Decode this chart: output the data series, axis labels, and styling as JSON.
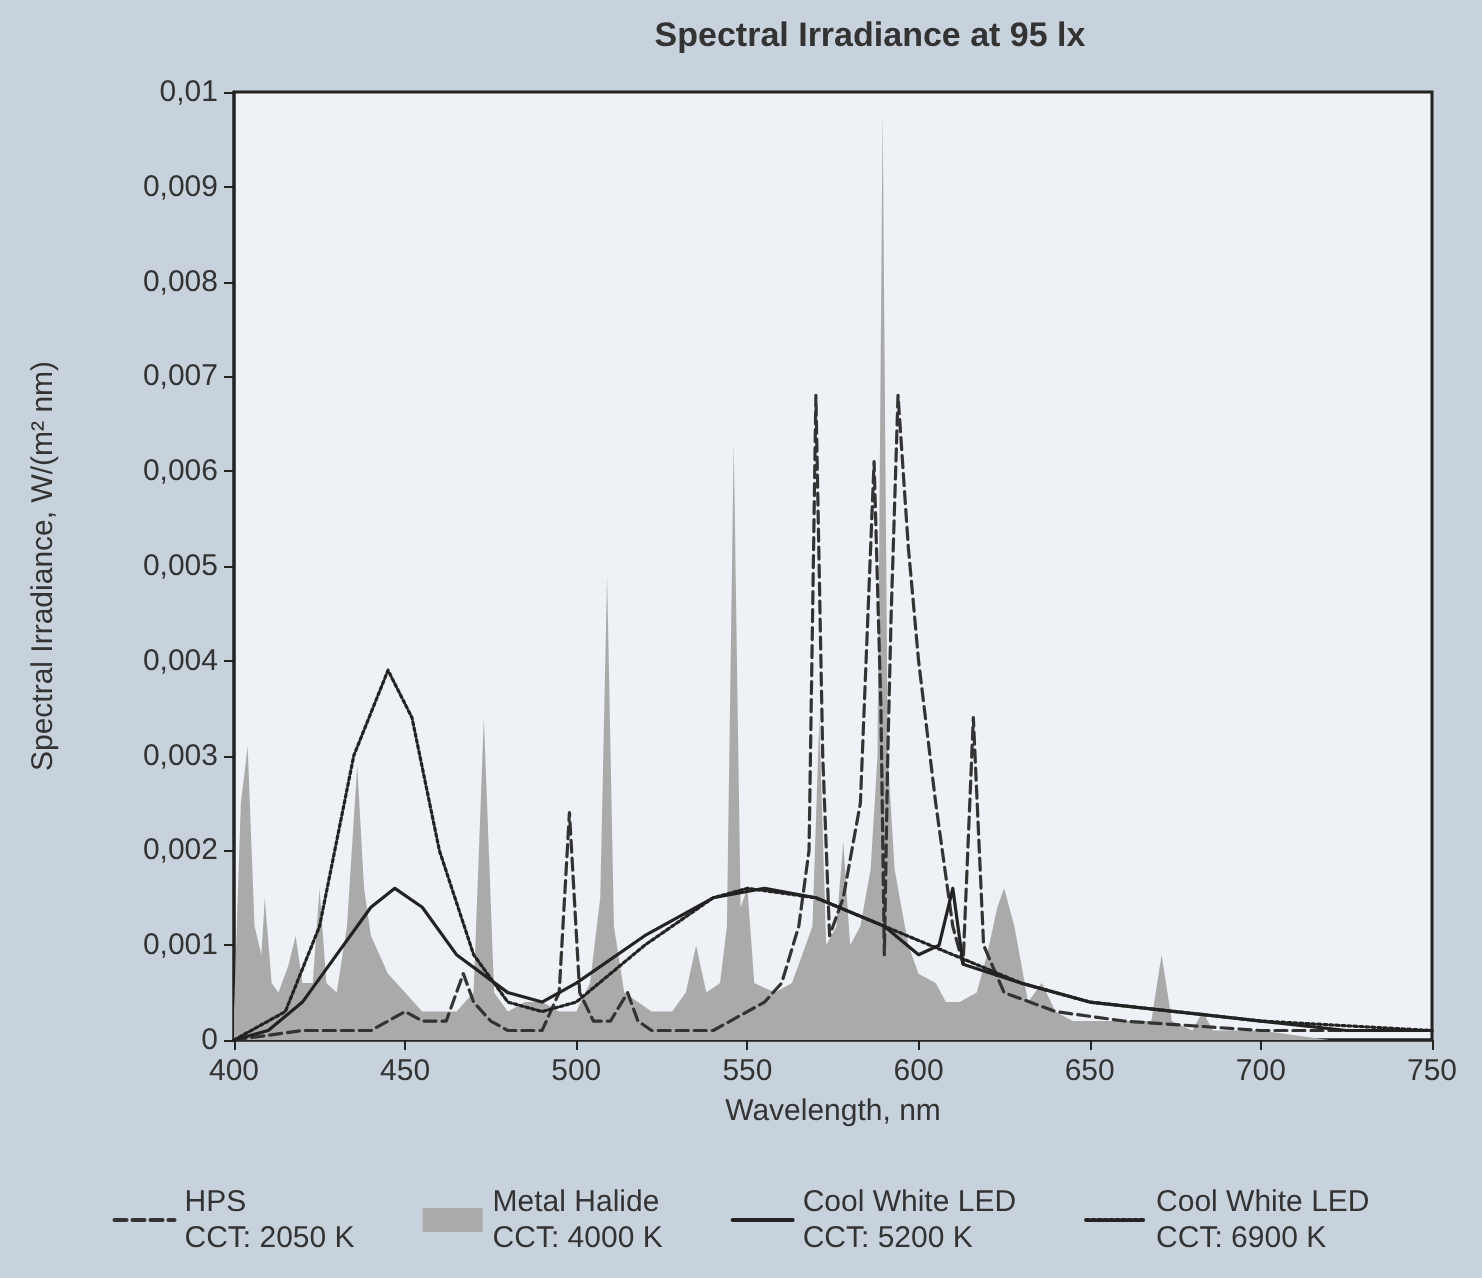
{
  "chart_data": {
    "type": "line",
    "title": "Spectral Irradiance at 95 lx",
    "xlabel": "Wavelength, nm",
    "ylabel": "Spectral Irradiance, W/(m² nm)",
    "xlim": [
      400,
      750
    ],
    "xticks": [
      400,
      450,
      500,
      550,
      600,
      650,
      700,
      750
    ],
    "ylim": [
      0,
      0.01
    ],
    "yticks": [
      {
        "value": 0,
        "label": "0"
      },
      {
        "value": 0.001,
        "label": "0,001"
      },
      {
        "value": 0.002,
        "label": "0,002"
      },
      {
        "value": 0.003,
        "label": "0,003"
      },
      {
        "value": 0.004,
        "label": "0,004"
      },
      {
        "value": 0.005,
        "label": "0,005"
      },
      {
        "value": 0.006,
        "label": "0,006"
      },
      {
        "value": 0.007,
        "label": "0,007"
      },
      {
        "value": 0.008,
        "label": "0,008"
      },
      {
        "value": 0.009,
        "label": "0,009"
      },
      {
        "value": 0.01,
        "label": "0,01"
      }
    ],
    "grid": false,
    "legend": "bottom",
    "marker": "none",
    "series": [
      {
        "name": "HPS\nCCT: 2050 K",
        "type": "line",
        "line_style": "dashed",
        "color": "#333333",
        "x": [
          400,
          420,
          440,
          450,
          455,
          462,
          467,
          470,
          475,
          480,
          490,
          495,
          498,
          501,
          505,
          510,
          515,
          518,
          522,
          540,
          555,
          560,
          565,
          568,
          570,
          572,
          574,
          578,
          583,
          587,
          589,
          590,
          591,
          592,
          594,
          597,
          600,
          605,
          610,
          613,
          616,
          619,
          625,
          640,
          660,
          700,
          750
        ],
        "values": [
          0,
          0.0001,
          0.0001,
          0.0003,
          0.0002,
          0.0002,
          0.0007,
          0.0004,
          0.0002,
          0.0001,
          0.0001,
          0.0005,
          0.0024,
          0.0005,
          0.0002,
          0.0002,
          0.0005,
          0.0002,
          0.0001,
          0.0001,
          0.0004,
          0.0006,
          0.0012,
          0.002,
          0.0068,
          0.003,
          0.0011,
          0.0015,
          0.0025,
          0.0061,
          0.0035,
          0.0009,
          0.003,
          0.0045,
          0.0068,
          0.0052,
          0.004,
          0.0025,
          0.0012,
          0.0008,
          0.0034,
          0.001,
          0.0005,
          0.0003,
          0.0002,
          0.0001,
          0.0001
        ]
      },
      {
        "name": "Metal Halide\nCCT: 4000 K",
        "type": "area",
        "color": "#aaaaaa",
        "x": [
          400,
          402,
          404,
          406,
          408,
          409,
          411,
          413,
          416,
          418,
          420,
          423,
          425,
          427,
          430,
          433,
          436,
          438,
          440,
          445,
          450,
          455,
          460,
          465,
          470,
          473,
          476,
          480,
          485,
          490,
          495,
          500,
          504,
          507,
          509,
          511,
          514,
          518,
          522,
          528,
          532,
          535,
          538,
          542,
          544,
          546,
          548,
          550,
          552,
          558,
          563,
          566,
          569,
          571,
          573,
          576,
          578,
          580,
          583,
          586,
          588,
          589.5,
          591,
          593,
          597,
          600,
          605,
          608,
          612,
          617,
          620,
          623,
          625,
          628,
          632,
          636,
          640,
          645,
          650,
          660,
          668,
          671,
          674,
          680,
          683,
          686,
          700,
          720,
          750
        ],
        "values": [
          0.0003,
          0.0025,
          0.0031,
          0.0012,
          0.0009,
          0.0015,
          0.0006,
          0.0005,
          0.0008,
          0.0011,
          0.0006,
          0.0006,
          0.0016,
          0.0006,
          0.0005,
          0.0012,
          0.0029,
          0.0016,
          0.0011,
          0.0007,
          0.0005,
          0.0003,
          0.0003,
          0.0003,
          0.0005,
          0.0034,
          0.0005,
          0.0003,
          0.0004,
          0.0004,
          0.0003,
          0.0003,
          0.0006,
          0.0015,
          0.0049,
          0.0012,
          0.0005,
          0.0004,
          0.0003,
          0.0003,
          0.0005,
          0.001,
          0.0005,
          0.0006,
          0.0012,
          0.0063,
          0.0014,
          0.0016,
          0.0006,
          0.0005,
          0.0006,
          0.0009,
          0.0012,
          0.0034,
          0.001,
          0.0012,
          0.0021,
          0.001,
          0.0012,
          0.0018,
          0.003,
          0.0098,
          0.003,
          0.0018,
          0.001,
          0.0007,
          0.0006,
          0.0004,
          0.0004,
          0.0005,
          0.0009,
          0.0014,
          0.0016,
          0.0012,
          0.0004,
          0.0006,
          0.0003,
          0.0002,
          0.0002,
          0.0002,
          0.0002,
          0.0009,
          0.0002,
          0.0001,
          0.0003,
          0.0001,
          0.0001,
          0,
          0
        ]
      },
      {
        "name": "Cool White LED\nCCT: 5200 K",
        "type": "line",
        "line_style": "solid",
        "color": "#222222",
        "x": [
          400,
          410,
          420,
          430,
          440,
          447,
          455,
          465,
          480,
          490,
          500,
          520,
          540,
          555,
          570,
          590,
          600,
          606,
          610,
          613,
          630,
          650,
          675,
          700,
          725,
          750
        ],
        "values": [
          0,
          0.0001,
          0.0004,
          0.0009,
          0.0014,
          0.0016,
          0.0014,
          0.0009,
          0.0005,
          0.0004,
          0.0006,
          0.0011,
          0.0015,
          0.0016,
          0.0015,
          0.0012,
          0.0009,
          0.001,
          0.0016,
          0.0008,
          0.0006,
          0.0004,
          0.0003,
          0.0002,
          0.0001,
          0.0001
        ]
      },
      {
        "name": "Cool White LED\nCCT: 6900 K",
        "type": "line",
        "line_style": "dotted",
        "color": "#222222",
        "x": [
          400,
          415,
          425,
          435,
          445,
          452,
          460,
          470,
          480,
          490,
          500,
          520,
          540,
          550,
          570,
          590,
          610,
          630,
          650,
          700,
          750
        ],
        "values": [
          0,
          0.0003,
          0.0012,
          0.003,
          0.0039,
          0.0034,
          0.002,
          0.0009,
          0.0004,
          0.0003,
          0.0004,
          0.001,
          0.0015,
          0.0016,
          0.0015,
          0.0012,
          0.0009,
          0.0006,
          0.0004,
          0.0002,
          0.0001
        ]
      }
    ]
  }
}
